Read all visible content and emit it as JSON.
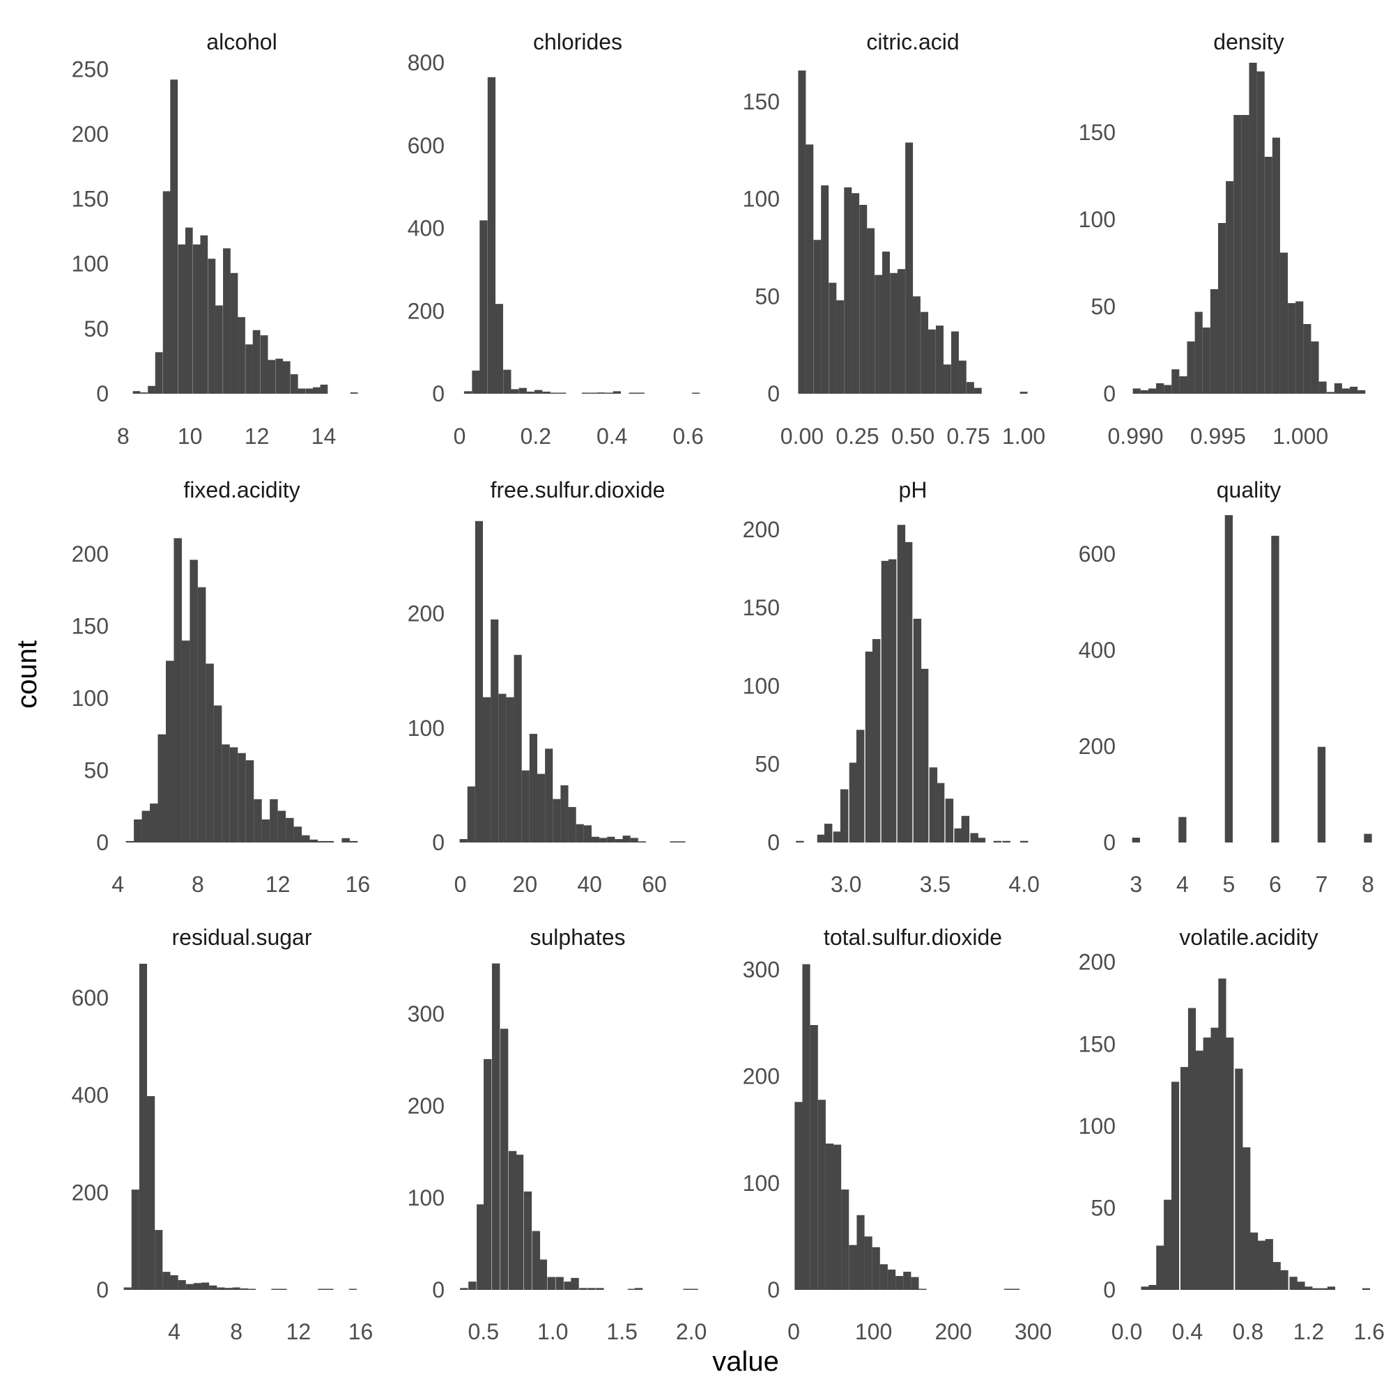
{
  "figure": {
    "xlabel": "value",
    "ylabel": "count",
    "bar_color": "#474747",
    "background": "#ffffff"
  },
  "chart_data": [
    {
      "type": "bar",
      "title": "alcohol",
      "xlim": [
        7.9,
        15.2
      ],
      "ylim": [
        0,
        255
      ],
      "x_ticks": [
        8,
        10,
        12,
        14
      ],
      "y_ticks": [
        0,
        50,
        100,
        150,
        200,
        250
      ],
      "bin_width": 0.224,
      "bins": [
        [
          8.4,
          2
        ],
        [
          8.62,
          1
        ],
        [
          8.85,
          6
        ],
        [
          9.07,
          32
        ],
        [
          9.3,
          156
        ],
        [
          9.52,
          242
        ],
        [
          9.75,
          115
        ],
        [
          9.97,
          128
        ],
        [
          10.2,
          115
        ],
        [
          10.42,
          122
        ],
        [
          10.65,
          104
        ],
        [
          10.87,
          68
        ],
        [
          11.1,
          112
        ],
        [
          11.32,
          93
        ],
        [
          11.54,
          59
        ],
        [
          11.77,
          38
        ],
        [
          11.99,
          49
        ],
        [
          12.22,
          45
        ],
        [
          12.44,
          26
        ],
        [
          12.67,
          27
        ],
        [
          12.89,
          25
        ],
        [
          13.12,
          15
        ],
        [
          13.34,
          4
        ],
        [
          13.57,
          4
        ],
        [
          13.79,
          5
        ],
        [
          14.01,
          7
        ],
        [
          14.91,
          1
        ]
      ]
    },
    {
      "type": "bar",
      "title": "chlorides",
      "xlim": [
        -0.01,
        0.63
      ],
      "ylim": [
        0,
        800
      ],
      "x_ticks": [
        0.0,
        0.2,
        0.4,
        0.6
      ],
      "y_ticks": [
        0,
        200,
        400,
        600,
        800
      ],
      "bin_width": 0.0206,
      "bins": [
        [
          0.022,
          6
        ],
        [
          0.043,
          56
        ],
        [
          0.063,
          419
        ],
        [
          0.084,
          765
        ],
        [
          0.104,
          217
        ],
        [
          0.125,
          58
        ],
        [
          0.145,
          11
        ],
        [
          0.166,
          14
        ],
        [
          0.186,
          5
        ],
        [
          0.207,
          9
        ],
        [
          0.228,
          5
        ],
        [
          0.248,
          2
        ],
        [
          0.269,
          2
        ],
        [
          0.331,
          2
        ],
        [
          0.352,
          1
        ],
        [
          0.372,
          3
        ],
        [
          0.393,
          2
        ],
        [
          0.413,
          6
        ],
        [
          0.455,
          1
        ],
        [
          0.475,
          1
        ],
        [
          0.62,
          1
        ]
      ]
    },
    {
      "type": "bar",
      "title": "citric.acid",
      "xlim": [
        -0.05,
        1.05
      ],
      "ylim": [
        0,
        170
      ],
      "x_ticks": [
        0.0,
        0.25,
        0.5,
        0.75,
        1.0
      ],
      "x_tick_labels": [
        "0.00",
        "0.25",
        "0.50",
        "0.75",
        "1.00"
      ],
      "y_ticks": [
        0,
        50,
        100,
        150
      ],
      "bin_width": 0.0345,
      "bins": [
        [
          0.0,
          166
        ],
        [
          0.034,
          128
        ],
        [
          0.069,
          79
        ],
        [
          0.103,
          107
        ],
        [
          0.138,
          57
        ],
        [
          0.172,
          48
        ],
        [
          0.207,
          106
        ],
        [
          0.241,
          103
        ],
        [
          0.276,
          97
        ],
        [
          0.31,
          85
        ],
        [
          0.345,
          61
        ],
        [
          0.379,
          73
        ],
        [
          0.414,
          62
        ],
        [
          0.448,
          64
        ],
        [
          0.483,
          129
        ],
        [
          0.517,
          50
        ],
        [
          0.552,
          42
        ],
        [
          0.586,
          33
        ],
        [
          0.621,
          35
        ],
        [
          0.655,
          15
        ],
        [
          0.69,
          32
        ],
        [
          0.724,
          17
        ],
        [
          0.759,
          6
        ],
        [
          0.793,
          3
        ],
        [
          1.0,
          1
        ]
      ]
    },
    {
      "type": "bar",
      "title": "density",
      "xlim": [
        0.98947,
        1.00426
      ],
      "ylim": [
        0,
        190
      ],
      "x_ticks": [
        0.99,
        0.995,
        1.0
      ],
      "x_tick_labels": [
        "0.990",
        "0.995",
        "1.000"
      ],
      "y_ticks": [
        0,
        50,
        100,
        150
      ],
      "bin_width": 0.000469,
      "bins": [
        [
          0.99007,
          3
        ],
        [
          0.99054,
          2
        ],
        [
          0.99101,
          3
        ],
        [
          0.99148,
          6
        ],
        [
          0.99195,
          5
        ],
        [
          0.99242,
          14
        ],
        [
          0.99289,
          10
        ],
        [
          0.99336,
          30
        ],
        [
          0.99383,
          47
        ],
        [
          0.9943,
          38
        ],
        [
          0.99477,
          60
        ],
        [
          0.99524,
          98
        ],
        [
          0.99571,
          122
        ],
        [
          0.99618,
          160
        ],
        [
          0.99665,
          160
        ],
        [
          0.99712,
          190
        ],
        [
          0.99759,
          185
        ],
        [
          0.99806,
          136
        ],
        [
          0.99853,
          147
        ],
        [
          0.999,
          81
        ],
        [
          0.99947,
          52
        ],
        [
          0.99994,
          53
        ],
        [
          1.00041,
          40
        ],
        [
          1.00088,
          30
        ],
        [
          1.00135,
          7
        ],
        [
          1.00182,
          1
        ],
        [
          1.00229,
          6
        ],
        [
          1.00276,
          3
        ],
        [
          1.00323,
          4
        ],
        [
          1.0037,
          2
        ]
      ]
    },
    {
      "type": "bar",
      "title": "fixed.acidity",
      "xlim": [
        4.1,
        16.3
      ],
      "ylim": [
        0,
        230
      ],
      "x_ticks": [
        4,
        8,
        12,
        16
      ],
      "y_ticks": [
        0,
        50,
        100,
        150,
        200
      ],
      "bin_width": 0.4,
      "bins": [
        [
          4.6,
          1
        ],
        [
          5.0,
          16
        ],
        [
          5.4,
          22
        ],
        [
          5.8,
          27
        ],
        [
          6.2,
          75
        ],
        [
          6.6,
          126
        ],
        [
          7.0,
          211
        ],
        [
          7.4,
          140
        ],
        [
          7.8,
          196
        ],
        [
          8.2,
          177
        ],
        [
          8.6,
          124
        ],
        [
          9.0,
          95
        ],
        [
          9.4,
          68
        ],
        [
          9.8,
          66
        ],
        [
          10.2,
          62
        ],
        [
          10.6,
          57
        ],
        [
          11.0,
          30
        ],
        [
          11.4,
          16
        ],
        [
          11.8,
          30
        ],
        [
          12.2,
          22
        ],
        [
          12.6,
          17
        ],
        [
          13.0,
          11
        ],
        [
          13.4,
          5
        ],
        [
          13.8,
          2
        ],
        [
          14.2,
          1
        ],
        [
          14.6,
          1
        ],
        [
          15.4,
          3
        ],
        [
          15.8,
          1
        ]
      ]
    },
    {
      "type": "bar",
      "title": "free.sulfur.dioxide",
      "xlim": [
        -1.4,
        74.0
      ],
      "ylim": [
        0,
        290
      ],
      "x_ticks": [
        0,
        20,
        40,
        60
      ],
      "y_ticks": [
        0,
        100,
        200
      ],
      "bin_width": 2.4,
      "bins": [
        [
          1.0,
          3
        ],
        [
          3.4,
          49
        ],
        [
          5.8,
          281
        ],
        [
          8.2,
          127
        ],
        [
          10.6,
          195
        ],
        [
          13.0,
          130
        ],
        [
          15.4,
          127
        ],
        [
          17.8,
          164
        ],
        [
          20.2,
          63
        ],
        [
          22.6,
          95
        ],
        [
          25.0,
          60
        ],
        [
          27.4,
          82
        ],
        [
          29.8,
          38
        ],
        [
          32.2,
          50
        ],
        [
          34.6,
          31
        ],
        [
          37.0,
          16
        ],
        [
          39.4,
          15
        ],
        [
          41.8,
          5
        ],
        [
          44.2,
          4
        ],
        [
          46.6,
          5
        ],
        [
          49.0,
          3
        ],
        [
          51.4,
          6
        ],
        [
          53.8,
          4
        ],
        [
          56.2,
          1
        ],
        [
          66.0,
          1
        ],
        [
          68.4,
          1
        ]
      ]
    },
    {
      "type": "bar",
      "title": "pH",
      "xlim": [
        2.69,
        4.06
      ],
      "ylim": [
        0,
        212
      ],
      "x_ticks": [
        3.0,
        3.5,
        4.0
      ],
      "x_tick_labels": [
        "3.0",
        "3.5",
        "4.0"
      ],
      "y_ticks": [
        0,
        50,
        100,
        150,
        200
      ],
      "bin_width": 0.0448,
      "bins": [
        [
          2.74,
          1
        ],
        [
          2.86,
          5
        ],
        [
          2.9,
          12
        ],
        [
          2.95,
          7
        ],
        [
          2.99,
          34
        ],
        [
          3.04,
          51
        ],
        [
          3.08,
          72
        ],
        [
          3.13,
          122
        ],
        [
          3.17,
          130
        ],
        [
          3.22,
          180
        ],
        [
          3.26,
          181
        ],
        [
          3.31,
          203
        ],
        [
          3.35,
          192
        ],
        [
          3.4,
          143
        ],
        [
          3.44,
          111
        ],
        [
          3.49,
          48
        ],
        [
          3.53,
          38
        ],
        [
          3.58,
          28
        ],
        [
          3.63,
          9
        ],
        [
          3.67,
          17
        ],
        [
          3.72,
          6
        ],
        [
          3.76,
          3
        ],
        [
          3.85,
          1
        ],
        [
          3.9,
          1
        ],
        [
          4.0,
          1
        ]
      ]
    },
    {
      "type": "bar",
      "title": "quality",
      "xlim": [
        2.8,
        8.06
      ],
      "ylim": [
        0,
        690
      ],
      "x_ticks": [
        3,
        4,
        5,
        6,
        7,
        8
      ],
      "y_ticks": [
        0,
        200,
        400,
        600
      ],
      "bin_width": 0.17,
      "bins": [
        [
          3.0,
          10
        ],
        [
          4.0,
          53
        ],
        [
          5.0,
          681
        ],
        [
          6.0,
          638
        ],
        [
          7.0,
          199
        ],
        [
          8.0,
          18
        ]
      ]
    },
    {
      "type": "bar",
      "title": "residual.sugar",
      "xlim": [
        0.5,
        16.2
      ],
      "ylim": [
        0,
        680
      ],
      "x_ticks": [
        4,
        8,
        12,
        16
      ],
      "y_ticks": [
        0,
        200,
        400,
        600
      ],
      "bin_width": 0.5,
      "bins": [
        [
          1.0,
          5
        ],
        [
          1.5,
          206
        ],
        [
          2.0,
          670
        ],
        [
          2.5,
          398
        ],
        [
          3.0,
          123
        ],
        [
          3.5,
          37
        ],
        [
          4.0,
          30
        ],
        [
          4.5,
          20
        ],
        [
          5.0,
          12
        ],
        [
          5.5,
          14
        ],
        [
          6.0,
          15
        ],
        [
          6.5,
          9
        ],
        [
          7.0,
          5
        ],
        [
          7.5,
          4
        ],
        [
          8.0,
          5
        ],
        [
          8.5,
          3
        ],
        [
          9.0,
          2
        ],
        [
          10.5,
          1
        ],
        [
          11.0,
          1
        ],
        [
          13.5,
          1
        ],
        [
          14.0,
          2
        ],
        [
          15.5,
          1
        ]
      ]
    },
    {
      "type": "bar",
      "title": "sulphates",
      "xlim": [
        0.3,
        2.06
      ],
      "ylim": [
        0,
        360
      ],
      "x_ticks": [
        0.5,
        1.0,
        1.5,
        2.0
      ],
      "x_tick_labels": [
        "0.5",
        "1.0",
        "1.5",
        "2.0"
      ],
      "y_ticks": [
        0,
        100,
        200,
        300
      ],
      "bin_width": 0.0574,
      "bins": [
        [
          0.36,
          2
        ],
        [
          0.42,
          9
        ],
        [
          0.48,
          93
        ],
        [
          0.53,
          251
        ],
        [
          0.59,
          355
        ],
        [
          0.65,
          284
        ],
        [
          0.71,
          151
        ],
        [
          0.76,
          147
        ],
        [
          0.82,
          107
        ],
        [
          0.88,
          64
        ],
        [
          0.93,
          33
        ],
        [
          0.99,
          14
        ],
        [
          1.05,
          14
        ],
        [
          1.11,
          9
        ],
        [
          1.16,
          13
        ],
        [
          1.22,
          2
        ],
        [
          1.28,
          2
        ],
        [
          1.34,
          2
        ],
        [
          1.57,
          1
        ],
        [
          1.62,
          2
        ],
        [
          1.97,
          1
        ],
        [
          2.02,
          1
        ]
      ]
    },
    {
      "type": "bar",
      "title": "total.sulfur.dioxide",
      "xlim": [
        -3.5,
        302.0
      ],
      "ylim": [
        0,
        310
      ],
      "x_ticks": [
        0,
        100,
        200,
        300
      ],
      "y_ticks": [
        0,
        100,
        200,
        300
      ],
      "bin_width": 9.73,
      "bins": [
        [
          6.0,
          176
        ],
        [
          15.7,
          305
        ],
        [
          25.5,
          248
        ],
        [
          35.2,
          178
        ],
        [
          44.9,
          137
        ],
        [
          54.6,
          136
        ],
        [
          64.3,
          94
        ],
        [
          74.1,
          42
        ],
        [
          83.8,
          70
        ],
        [
          93.5,
          50
        ],
        [
          103.2,
          40
        ],
        [
          112.9,
          24
        ],
        [
          122.7,
          19
        ],
        [
          132.4,
          13
        ],
        [
          142.1,
          17
        ],
        [
          151.8,
          12
        ],
        [
          161.5,
          1
        ],
        [
          268.4,
          1
        ],
        [
          278.1,
          1
        ]
      ]
    },
    {
      "type": "bar",
      "title": "volatile.acidity",
      "xlim": [
        0.0,
        1.61
      ],
      "ylim": [
        0,
        202
      ],
      "x_ticks": [
        0.0,
        0.4,
        0.8,
        1.2,
        1.6
      ],
      "x_tick_labels": [
        "0.0",
        "0.4",
        "0.8",
        "1.2",
        "1.6"
      ],
      "y_ticks": [
        0,
        50,
        100,
        150,
        200
      ],
      "bin_width": 0.0514,
      "bins": [
        [
          0.12,
          2
        ],
        [
          0.17,
          3
        ],
        [
          0.22,
          27
        ],
        [
          0.27,
          55
        ],
        [
          0.32,
          127
        ],
        [
          0.38,
          136
        ],
        [
          0.43,
          172
        ],
        [
          0.48,
          146
        ],
        [
          0.53,
          154
        ],
        [
          0.58,
          160
        ],
        [
          0.63,
          190
        ],
        [
          0.68,
          154
        ],
        [
          0.74,
          135
        ],
        [
          0.79,
          87
        ],
        [
          0.84,
          35
        ],
        [
          0.89,
          30
        ],
        [
          0.94,
          31
        ],
        [
          0.99,
          17
        ],
        [
          1.04,
          12
        ],
        [
          1.1,
          8
        ],
        [
          1.15,
          5
        ],
        [
          1.2,
          2
        ],
        [
          1.25,
          1
        ],
        [
          1.3,
          1
        ],
        [
          1.35,
          2
        ],
        [
          1.58,
          1
        ]
      ]
    }
  ]
}
